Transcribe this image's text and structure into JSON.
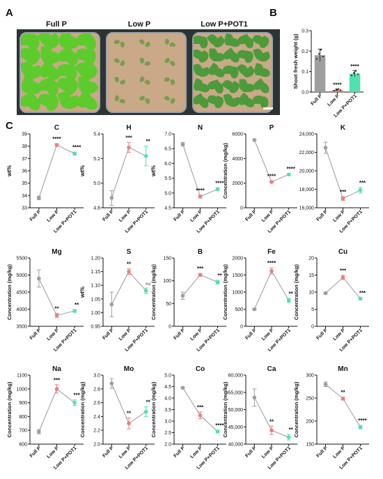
{
  "panels": {
    "a": "A",
    "b": "B",
    "c": "C"
  },
  "photo": {
    "labels": [
      "Full P",
      "Low P",
      "Low P+POT1"
    ],
    "colors": {
      "leaf_full": "#5ecb2c",
      "leaf_pot1": "#4c9a3a",
      "soil": "#c9a988",
      "tray_bg": "#2d3436"
    }
  },
  "colors": {
    "full_p": "#9e9e9e",
    "low_p": "#ec7f7f",
    "pot1": "#52e0b0"
  },
  "chart_data": [
    {
      "id": "shoot",
      "type": "bar",
      "ylabel": "Shoot fresh weight (g)",
      "categories": [
        "Full P",
        "Low P",
        "Low P+POT1"
      ],
      "values": [
        0.18,
        0.01,
        0.09
      ],
      "errors": [
        0.03,
        0.005,
        0.015
      ],
      "sig": [
        "",
        "****",
        "****"
      ],
      "ylim": [
        0,
        0.3
      ],
      "yticks": [
        "0.0",
        "0.1",
        "0.2",
        "0.3"
      ]
    },
    {
      "id": "C",
      "type": "line",
      "title": "C",
      "ylabel": "wt%",
      "categories": [
        "Full P",
        "Low P",
        "Low P+POT1"
      ],
      "values": [
        33.8,
        38.1,
        37.4
      ],
      "errors": [
        0.15,
        0.1,
        0.12
      ],
      "sig": [
        "",
        "****",
        "****"
      ],
      "ylim": [
        33,
        39
      ],
      "yticks": [
        "33",
        "34",
        "35",
        "36",
        "37",
        "38",
        "39"
      ]
    },
    {
      "id": "H",
      "type": "line",
      "title": "H",
      "ylabel": "wt%",
      "categories": [
        "Full P",
        "Low P",
        "Low P+POT1"
      ],
      "values": [
        4.88,
        5.29,
        5.22
      ],
      "errors": [
        0.06,
        0.04,
        0.08
      ],
      "sig": [
        "",
        "***",
        "**"
      ],
      "ylim": [
        4.8,
        5.4
      ],
      "yticks": [
        "4.8",
        "5.0",
        "5.2",
        "5.4"
      ]
    },
    {
      "id": "N",
      "type": "line",
      "title": "N",
      "ylabel": "wt%",
      "categories": [
        "Full P",
        "Low P",
        "Low P+POT1"
      ],
      "values": [
        6.65,
        4.88,
        5.13
      ],
      "errors": [
        0.06,
        0.05,
        0.04
      ],
      "sig": [
        "",
        "****",
        "****"
      ],
      "ylim": [
        4.5,
        7.0
      ],
      "yticks": [
        "4.5",
        "5.0",
        "5.5",
        "6.0",
        "6.5",
        "7.0"
      ]
    },
    {
      "id": "P",
      "type": "line",
      "title": "P",
      "ylabel": "Concentration (mg/kg)",
      "categories": [
        "Full P",
        "Low P",
        "Low P+POT1"
      ],
      "values": [
        5500,
        2100,
        2700
      ],
      "errors": [
        60,
        80,
        70
      ],
      "sig": [
        "",
        "****",
        "****"
      ],
      "ylim": [
        0,
        6000
      ],
      "yticks": [
        "0",
        "2000",
        "4000",
        "6000"
      ]
    },
    {
      "id": "K",
      "type": "line",
      "title": "K",
      "ylabel": "",
      "categories": [
        "Full P",
        "Low P",
        "Low P+POT1"
      ],
      "values": [
        22500,
        17000,
        17900
      ],
      "errors": [
        600,
        200,
        300
      ],
      "sig": [
        "",
        "***",
        "***"
      ],
      "ylim": [
        16000,
        24000
      ],
      "yticks": [
        "16,000",
        "18,000",
        "20,000",
        "22,000",
        "24,000"
      ]
    },
    {
      "id": "Mg",
      "type": "line",
      "title": "Mg",
      "ylabel": "Concentration (mg/kg)",
      "categories": [
        "Full P",
        "Low P",
        "Low P+POT1"
      ],
      "values": [
        4900,
        3820,
        3950
      ],
      "errors": [
        250,
        60,
        40
      ],
      "sig": [
        "",
        "**",
        "**"
      ],
      "ylim": [
        3500,
        5500
      ],
      "yticks": [
        "3500",
        "4000",
        "4500",
        "5000",
        "5500"
      ]
    },
    {
      "id": "S",
      "type": "line",
      "title": "S",
      "ylabel": "wt%",
      "categories": [
        "Full P",
        "Low P",
        "Low P+POT1"
      ],
      "values": [
        1.03,
        1.15,
        1.08
      ],
      "errors": [
        0.045,
        0.01,
        0.01
      ],
      "sig": [
        "",
        "**",
        "ns"
      ],
      "ylim": [
        0.95,
        1.2
      ],
      "yticks": [
        "0.95",
        "1.00",
        "1.05",
        "1.10",
        "1.15",
        "1.20"
      ]
    },
    {
      "id": "B",
      "type": "line",
      "title": "B",
      "ylabel": "Concentration (mg/kg)",
      "categories": [
        "Full P",
        "Low P",
        "Low P+POT1"
      ],
      "values": [
        67,
        113,
        97
      ],
      "errors": [
        8,
        3,
        4
      ],
      "sig": [
        "",
        "***",
        "**"
      ],
      "ylim": [
        0,
        150
      ],
      "yticks": [
        "0",
        "50",
        "100",
        "150"
      ]
    },
    {
      "id": "Fe",
      "type": "line",
      "title": "Fe",
      "ylabel": "Concentration (mg/kg)",
      "categories": [
        "Full P",
        "Low P",
        "Low P+POT1"
      ],
      "values": [
        500,
        1620,
        760
      ],
      "errors": [
        20,
        90,
        60
      ],
      "sig": [
        "",
        "****",
        "**"
      ],
      "ylim": [
        0,
        2000
      ],
      "yticks": [
        "0",
        "500",
        "1000",
        "1500",
        "2000"
      ]
    },
    {
      "id": "Cu",
      "type": "line",
      "title": "Cu",
      "ylabel": "Concentration (mg/kg)",
      "categories": [
        "Full P",
        "Low P",
        "Low P+POT1"
      ],
      "values": [
        9.7,
        14.3,
        8.1
      ],
      "errors": [
        0.2,
        0.6,
        0.3
      ],
      "sig": [
        "",
        "***",
        "***"
      ],
      "ylim": [
        0,
        20
      ],
      "yticks": [
        "0",
        "5",
        "10",
        "15",
        "20"
      ]
    },
    {
      "id": "Na",
      "type": "line",
      "title": "Na",
      "ylabel": "Concentration (mg/kg)",
      "categories": [
        "Full P",
        "Low P",
        "Low P+POT1"
      ],
      "values": [
        690,
        1000,
        900
      ],
      "errors": [
        15,
        30,
        20
      ],
      "sig": [
        "",
        "***",
        "***"
      ],
      "ylim": [
        600,
        1100
      ],
      "yticks": [
        "600",
        "700",
        "800",
        "900",
        "1000",
        "1100"
      ]
    },
    {
      "id": "Mo",
      "type": "line",
      "title": "Mo",
      "ylabel": "Concentration (mg/kg)",
      "categories": [
        "Full P",
        "Low P",
        "Low P+POT1"
      ],
      "values": [
        2.88,
        2.3,
        2.47
      ],
      "errors": [
        0.07,
        0.08,
        0.07
      ],
      "sig": [
        "",
        "**",
        "**"
      ],
      "ylim": [
        2.0,
        3.0
      ],
      "yticks": [
        "2.0",
        "2.2",
        "2.4",
        "2.6",
        "2.8",
        "3.0"
      ]
    },
    {
      "id": "Co",
      "type": "line",
      "title": "Co",
      "ylabel": "Concentration (mg/kg)",
      "categories": [
        "Full P",
        "Low P",
        "Low P+POT1"
      ],
      "values": [
        4.45,
        3.25,
        2.55
      ],
      "errors": [
        0.03,
        0.15,
        0.05
      ],
      "sig": [
        "",
        "***",
        "****"
      ],
      "ylim": [
        2.0,
        5.0
      ],
      "yticks": [
        "2.0",
        "2.5",
        "3.0",
        "3.5",
        "4.0",
        "4.5",
        "5.0"
      ]
    },
    {
      "id": "Ca",
      "type": "line",
      "title": "Ca",
      "ylabel": "Concentration (mg/kg)",
      "categories": [
        "Full P",
        "Low P",
        "Low P+POT1"
      ],
      "values": [
        53500,
        44000,
        42000
      ],
      "errors": [
        2500,
        1200,
        800
      ],
      "sig": [
        "",
        "**",
        "**"
      ],
      "ylim": [
        40000,
        60000
      ],
      "yticks": [
        "40,000",
        "45,000",
        "50,000",
        "55,000",
        "60,000"
      ]
    },
    {
      "id": "Mn",
      "type": "line",
      "title": "Mn",
      "ylabel": "Concentration (mg/kg)",
      "categories": [
        "Full P",
        "Low P",
        "Low P+POT1"
      ],
      "values": [
        280,
        249,
        187
      ],
      "errors": [
        5,
        3,
        4
      ],
      "sig": [
        "",
        "**",
        "****"
      ],
      "ylim": [
        150,
        300
      ],
      "yticks": [
        "150",
        "200",
        "250",
        "300"
      ]
    }
  ]
}
